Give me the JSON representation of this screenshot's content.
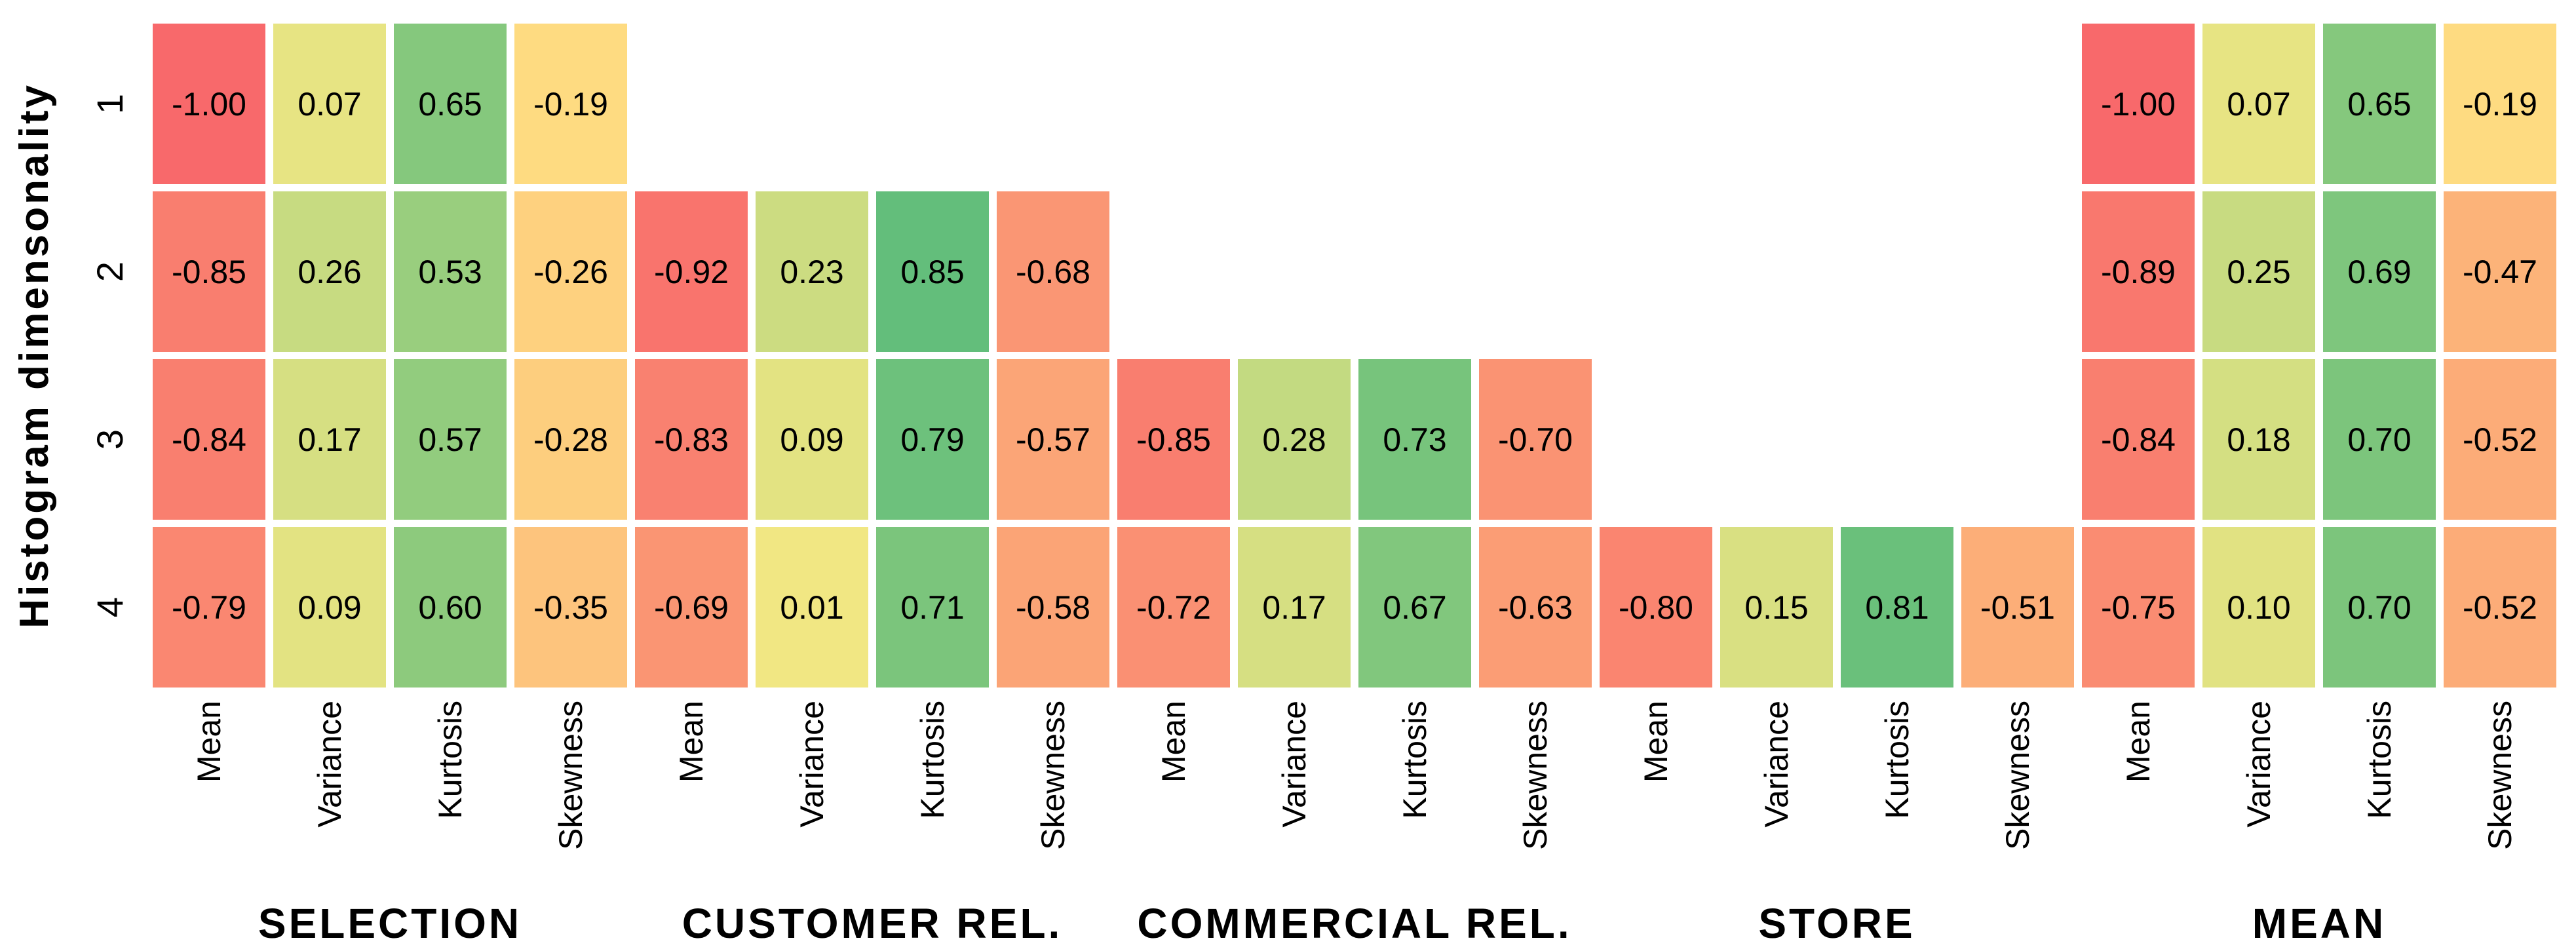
{
  "chart_data": {
    "type": "heatmap",
    "title": "",
    "ylabel": "Histogram dimensonality",
    "xlabel": "",
    "row_labels": [
      "1",
      "2",
      "3",
      "4"
    ],
    "legend_position": "none",
    "grid": false,
    "background": "#ffffff",
    "cell_text_color": "#000000",
    "gap_color": "#ffffff",
    "value_format_decimals": 2,
    "colormap": {
      "stops": [
        "#F8696B",
        "#FFEB84",
        "#63BE7B"
      ],
      "domain": [
        -1.0,
        0.85
      ],
      "description": "red-yellow-green diverging, yellow at domain midpoint"
    },
    "groups": [
      {
        "label": "SELECTION",
        "columns": [
          "Mean",
          "Variance",
          "Kurtosis",
          "Skewness"
        ],
        "rows": [
          [
            -1.0,
            0.07,
            0.65,
            -0.19
          ],
          [
            -0.85,
            0.26,
            0.53,
            -0.26
          ],
          [
            -0.84,
            0.17,
            0.57,
            -0.28
          ],
          [
            -0.79,
            0.09,
            0.6,
            -0.35
          ]
        ]
      },
      {
        "label": "CUSTOMER REL.",
        "columns": [
          "Mean",
          "Variance",
          "Kurtosis",
          "Skewness"
        ],
        "rows": [
          [
            null,
            null,
            null,
            null
          ],
          [
            -0.92,
            0.23,
            0.85,
            -0.68
          ],
          [
            -0.83,
            0.09,
            0.79,
            -0.57
          ],
          [
            -0.69,
            0.01,
            0.71,
            -0.58
          ]
        ]
      },
      {
        "label": "COMMERCIAL REL.",
        "columns": [
          "Mean",
          "Variance",
          "Kurtosis",
          "Skewness"
        ],
        "rows": [
          [
            null,
            null,
            null,
            null
          ],
          [
            null,
            null,
            null,
            null
          ],
          [
            -0.85,
            0.28,
            0.73,
            -0.7
          ],
          [
            -0.72,
            0.17,
            0.67,
            -0.63
          ]
        ]
      },
      {
        "label": "STORE",
        "columns": [
          "Mean",
          "Variance",
          "Kurtosis",
          "Skewness"
        ],
        "rows": [
          [
            null,
            null,
            null,
            null
          ],
          [
            null,
            null,
            null,
            null
          ],
          [
            null,
            null,
            null,
            null
          ],
          [
            -0.8,
            0.15,
            0.81,
            -0.51
          ]
        ]
      },
      {
        "label": "MEAN",
        "columns": [
          "Mean",
          "Variance",
          "Kurtosis",
          "Skewness"
        ],
        "rows": [
          [
            -1.0,
            0.07,
            0.65,
            -0.19
          ],
          [
            -0.89,
            0.25,
            0.69,
            -0.47
          ],
          [
            -0.84,
            0.18,
            0.7,
            -0.52
          ],
          [
            -0.75,
            0.1,
            0.7,
            -0.52
          ]
        ]
      }
    ]
  }
}
